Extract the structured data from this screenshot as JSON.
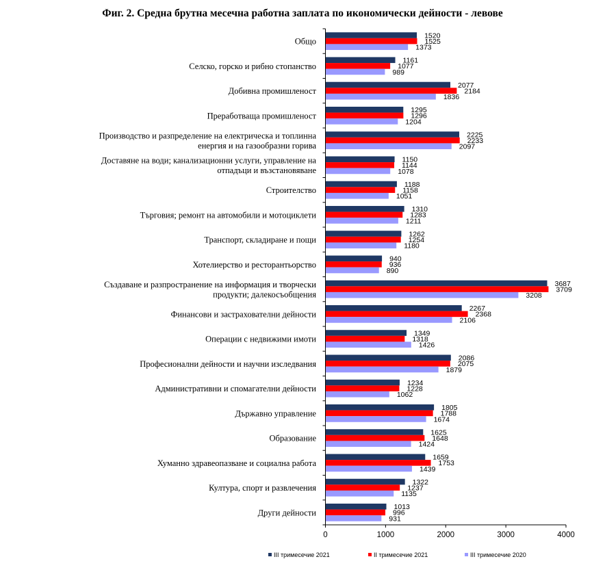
{
  "chart_data": {
    "type": "bar",
    "orientation": "horizontal",
    "title": "Фиг. 2. Средна брутна месечна работна заплата по икономически дейности - левове",
    "categories": [
      [
        "Общо"
      ],
      [
        "Селско, горско и рибно стопанство"
      ],
      [
        "Добивна промишленост"
      ],
      [
        "Преработваща промишленост"
      ],
      [
        "Производство и разпределение на електрическа и топлинна",
        "енергия и на газообразни горива"
      ],
      [
        "Доставяне на води; канализационни услуги, управление на",
        "отпадъци и възстановяване"
      ],
      [
        "Строителство"
      ],
      [
        "Търговия; ремонт на автомобили и мотоциклети"
      ],
      [
        "Транспорт, складиране и пощи"
      ],
      [
        "Хотелиерство и ресторантьорство"
      ],
      [
        "Създаване и разпространение на информация и творчески",
        "продукти; далекосъобщения"
      ],
      [
        "Финансови и застрахователни дейности"
      ],
      [
        "Операции с недвижими имоти"
      ],
      [
        "Професионални дейности и научни изследвания"
      ],
      [
        "Административни и спомагателни дейности"
      ],
      [
        "Държавно управление"
      ],
      [
        "Образование"
      ],
      [
        "Хуманно здравеопазване и социална работа"
      ],
      [
        "Култура, спорт и развлечения"
      ],
      [
        "Други дейности"
      ]
    ],
    "series": [
      {
        "name": "III тримесечие 2021",
        "color": "#1f3864",
        "values": [
          1520,
          1161,
          2077,
          1295,
          2225,
          1150,
          1188,
          1310,
          1262,
          940,
          3687,
          2267,
          1349,
          2086,
          1234,
          1805,
          1625,
          1659,
          1322,
          1013
        ]
      },
      {
        "name": "II тримесечие 2021",
        "color": "#ff0000",
        "values": [
          1525,
          1077,
          2184,
          1296,
          2233,
          1144,
          1158,
          1283,
          1254,
          936,
          3709,
          2368,
          1318,
          2075,
          1228,
          1788,
          1648,
          1753,
          1237,
          996
        ]
      },
      {
        "name": "III тримесечие 2020",
        "color": "#9999ff",
        "values": [
          1373,
          989,
          1836,
          1204,
          2097,
          1078,
          1051,
          1211,
          1180,
          890,
          3208,
          2106,
          1426,
          1879,
          1062,
          1674,
          1424,
          1439,
          1135,
          931
        ]
      }
    ],
    "xlim": [
      0,
      4000
    ],
    "xticks": [
      0,
      1000,
      2000,
      3000,
      4000
    ],
    "grid": false,
    "legend_position": "bottom"
  }
}
